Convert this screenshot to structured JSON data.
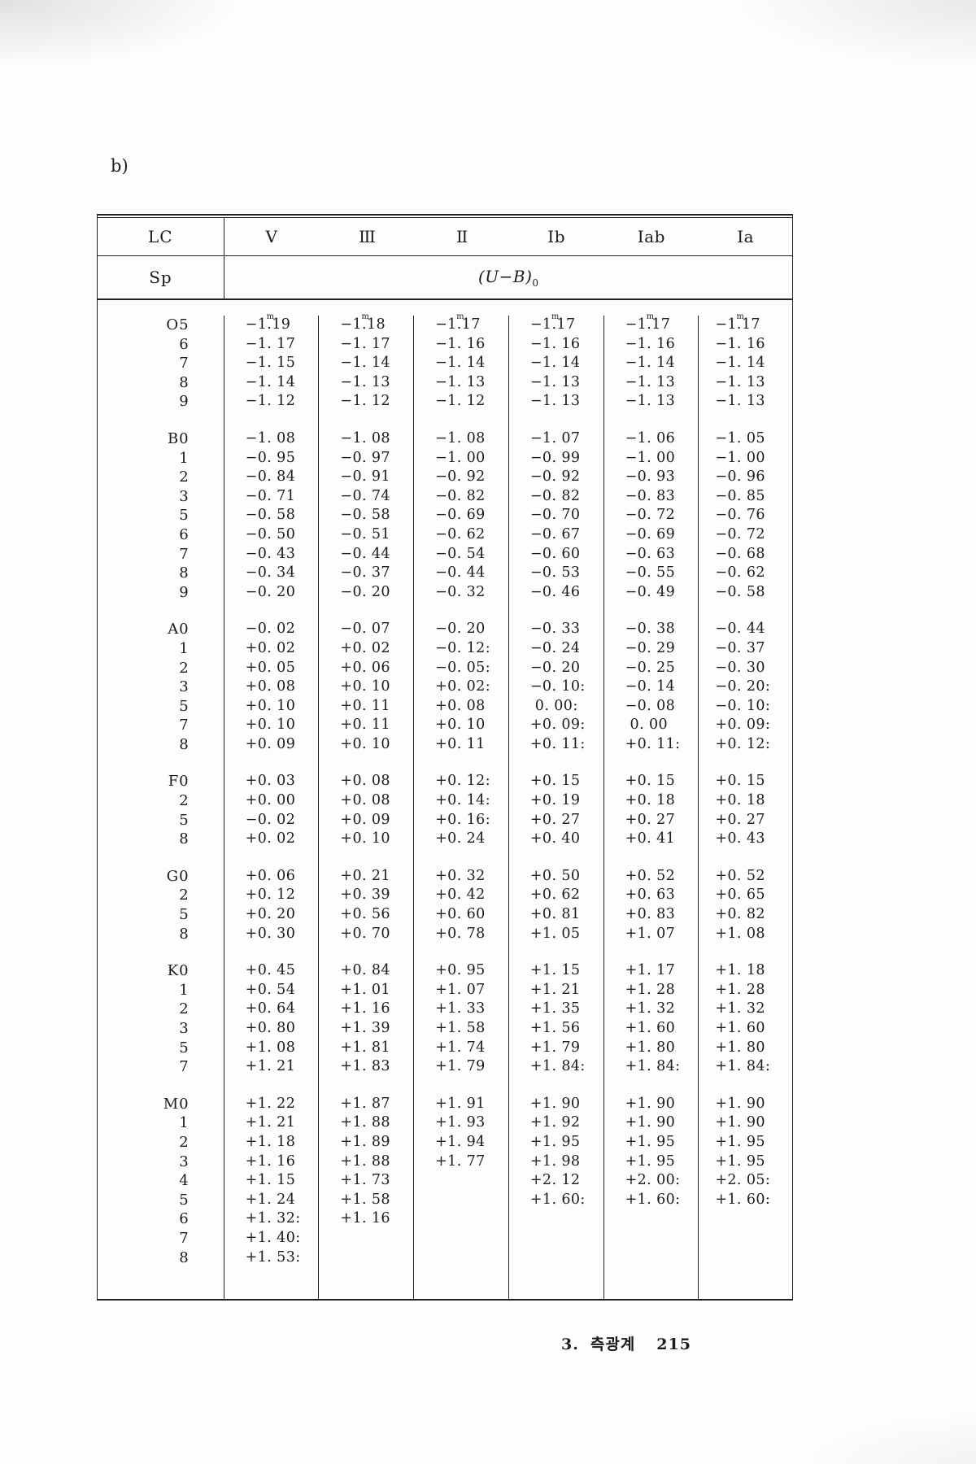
{
  "page_label": "b)",
  "footer": {
    "section": "3.",
    "title": "측광계",
    "page": "215"
  },
  "table": {
    "header_row1": [
      "LC",
      "V",
      "III",
      "II",
      "Ib",
      "Iab",
      "Ia"
    ],
    "header_row2": {
      "sp": "Sp",
      "ub_pre": "(U−B)",
      "ub_sub": "0"
    },
    "groups": [
      {
        "name": "O",
        "rows": [
          {
            "sp": "O5",
            "vals": [
              "−1ᵐ19",
              "−1ᵐ18",
              "−1ᵐ17",
              "−1ᵐ17",
              "−1ᵐ17",
              "−1ᵐ17"
            ]
          },
          {
            "sp": "6",
            "vals": [
              "−1. 17",
              "−1. 17",
              "−1. 16",
              "−1. 16",
              "−1. 16",
              "−1. 16"
            ]
          },
          {
            "sp": "7",
            "vals": [
              "−1. 15",
              "−1. 14",
              "−1. 14",
              "−1. 14",
              "−1. 14",
              "−1. 14"
            ]
          },
          {
            "sp": "8",
            "vals": [
              "−1. 14",
              "−1. 13",
              "−1. 13",
              "−1. 13",
              "−1. 13",
              "−1. 13"
            ]
          },
          {
            "sp": "9",
            "vals": [
              "−1. 12",
              "−1. 12",
              "−1. 12",
              "−1. 13",
              "−1. 13",
              "−1. 13"
            ]
          }
        ]
      },
      {
        "name": "B",
        "rows": [
          {
            "sp": "B0",
            "vals": [
              "−1. 08",
              "−1. 08",
              "−1. 08",
              "−1. 07",
              "−1. 06",
              "−1. 05"
            ]
          },
          {
            "sp": "1",
            "vals": [
              "−0. 95",
              "−0. 97",
              "−1. 00",
              "−0. 99",
              "−1. 00",
              "−1. 00"
            ]
          },
          {
            "sp": "2",
            "vals": [
              "−0. 84",
              "−0. 91",
              "−0. 92",
              "−0. 92",
              "−0. 93",
              "−0. 96"
            ]
          },
          {
            "sp": "3",
            "vals": [
              "−0. 71",
              "−0. 74",
              "−0. 82",
              "−0. 82",
              "−0. 83",
              "−0. 85"
            ]
          },
          {
            "sp": "5",
            "vals": [
              "−0. 58",
              "−0. 58",
              "−0. 69",
              "−0. 70",
              "−0. 72",
              "−0. 76"
            ]
          },
          {
            "sp": "6",
            "vals": [
              "−0. 50",
              "−0. 51",
              "−0. 62",
              "−0. 67",
              "−0. 69",
              "−0. 72"
            ]
          },
          {
            "sp": "7",
            "vals": [
              "−0. 43",
              "−0. 44",
              "−0. 54",
              "−0. 60",
              "−0. 63",
              "−0. 68"
            ]
          },
          {
            "sp": "8",
            "vals": [
              "−0. 34",
              "−0. 37",
              "−0. 44",
              "−0. 53",
              "−0. 55",
              "−0. 62"
            ]
          },
          {
            "sp": "9",
            "vals": [
              "−0. 20",
              "−0. 20",
              "−0. 32",
              "−0. 46",
              "−0. 49",
              "−0. 58"
            ]
          }
        ]
      },
      {
        "name": "A",
        "rows": [
          {
            "sp": "A0",
            "vals": [
              "−0. 02",
              "−0. 07",
              "−0. 20",
              "−0. 33",
              "−0. 38",
              "−0. 44"
            ]
          },
          {
            "sp": "1",
            "vals": [
              "+0. 02",
              "+0. 02",
              "−0. 12:",
              "−0. 24",
              "−0. 29",
              "−0. 37"
            ]
          },
          {
            "sp": "2",
            "vals": [
              "+0. 05",
              "+0. 06",
              "−0. 05:",
              "−0. 20",
              "−0. 25",
              "−0. 30"
            ]
          },
          {
            "sp": "3",
            "vals": [
              "+0. 08",
              "+0. 10",
              "+0. 02:",
              "−0. 10:",
              "−0. 14",
              "−0. 20:"
            ]
          },
          {
            "sp": "5",
            "vals": [
              "+0. 10",
              "+0. 11",
              "+0. 08",
              " 0. 00:",
              "−0. 08",
              "−0. 10:"
            ]
          },
          {
            "sp": "7",
            "vals": [
              "+0. 10",
              "+0. 11",
              "+0. 10",
              "+0. 09:",
              " 0. 00",
              "+0. 09:"
            ]
          },
          {
            "sp": "8",
            "vals": [
              "+0. 09",
              "+0. 10",
              "+0. 11",
              "+0. 11:",
              "+0. 11:",
              "+0. 12:"
            ]
          }
        ]
      },
      {
        "name": "F",
        "rows": [
          {
            "sp": "F0",
            "vals": [
              "+0. 03",
              "+0. 08",
              "+0. 12:",
              "+0. 15",
              "+0. 15",
              "+0. 15"
            ]
          },
          {
            "sp": "2",
            "vals": [
              "+0. 00",
              "+0. 08",
              "+0. 14:",
              "+0. 19",
              "+0. 18",
              "+0. 18"
            ]
          },
          {
            "sp": "5",
            "vals": [
              "−0. 02",
              "+0. 09",
              "+0. 16:",
              "+0. 27",
              "+0. 27",
              "+0. 27"
            ]
          },
          {
            "sp": "8",
            "vals": [
              "+0. 02",
              "+0. 10",
              "+0. 24",
              "+0. 40",
              "+0. 41",
              "+0. 43"
            ]
          }
        ]
      },
      {
        "name": "G",
        "rows": [
          {
            "sp": "G0",
            "vals": [
              "+0. 06",
              "+0. 21",
              "+0. 32",
              "+0. 50",
              "+0. 52",
              "+0. 52"
            ]
          },
          {
            "sp": "2",
            "vals": [
              "+0. 12",
              "+0. 39",
              "+0. 42",
              "+0. 62",
              "+0. 63",
              "+0. 65"
            ]
          },
          {
            "sp": "5",
            "vals": [
              "+0. 20",
              "+0. 56",
              "+0. 60",
              "+0. 81",
              "+0. 83",
              "+0. 82"
            ]
          },
          {
            "sp": "8",
            "vals": [
              "+0. 30",
              "+0. 70",
              "+0. 78",
              "+1. 05",
              "+1. 07",
              "+1. 08"
            ]
          }
        ]
      },
      {
        "name": "K",
        "rows": [
          {
            "sp": "K0",
            "vals": [
              "+0. 45",
              "+0. 84",
              "+0. 95",
              "+1. 15",
              "+1. 17",
              "+1. 18"
            ]
          },
          {
            "sp": "1",
            "vals": [
              "+0. 54",
              "+1. 01",
              "+1. 07",
              "+1. 21",
              "+1. 28",
              "+1. 28"
            ]
          },
          {
            "sp": "2",
            "vals": [
              "+0. 64",
              "+1. 16",
              "+1. 33",
              "+1. 35",
              "+1. 32",
              "+1. 32"
            ]
          },
          {
            "sp": "3",
            "vals": [
              "+0. 80",
              "+1. 39",
              "+1. 58",
              "+1. 56",
              "+1. 60",
              "+1. 60"
            ]
          },
          {
            "sp": "5",
            "vals": [
              "+1. 08",
              "+1. 81",
              "+1. 74",
              "+1. 79",
              "+1. 80",
              "+1. 80"
            ]
          },
          {
            "sp": "7",
            "vals": [
              "+1. 21",
              "+1. 83",
              "+1. 79",
              "+1. 84:",
              "+1. 84:",
              "+1. 84:"
            ]
          }
        ]
      },
      {
        "name": "M",
        "rows": [
          {
            "sp": "M0",
            "vals": [
              "+1. 22",
              "+1. 87",
              "+1. 91",
              "+1. 90",
              "+1. 90",
              "+1. 90"
            ]
          },
          {
            "sp": "1",
            "vals": [
              "+1. 21",
              "+1. 88",
              "+1. 93",
              "+1. 92",
              "+1. 90",
              "+1. 90"
            ]
          },
          {
            "sp": "2",
            "vals": [
              "+1. 18",
              "+1. 89",
              "+1. 94",
              "+1. 95",
              "+1. 95",
              "+1. 95"
            ]
          },
          {
            "sp": "3",
            "vals": [
              "+1. 16",
              "+1. 88",
              "+1. 77",
              "+1. 98",
              "+1. 95",
              "+1. 95"
            ]
          },
          {
            "sp": "4",
            "vals": [
              "+1. 15",
              "+1. 73",
              "",
              "+2. 12",
              "+2. 00:",
              "+2. 05:"
            ]
          },
          {
            "sp": "5",
            "vals": [
              "+1. 24",
              "+1. 58",
              "",
              "+1. 60:",
              "+1. 60:",
              "+1. 60:"
            ]
          },
          {
            "sp": "6",
            "vals": [
              "+1. 32:",
              "+1. 16",
              "",
              "",
              "",
              ""
            ]
          },
          {
            "sp": "7",
            "vals": [
              "+1. 40:",
              "",
              "",
              "",
              "",
              ""
            ]
          },
          {
            "sp": "8",
            "vals": [
              "+1. 53:",
              "",
              "",
              "",
              "",
              ""
            ]
          }
        ]
      }
    ]
  }
}
